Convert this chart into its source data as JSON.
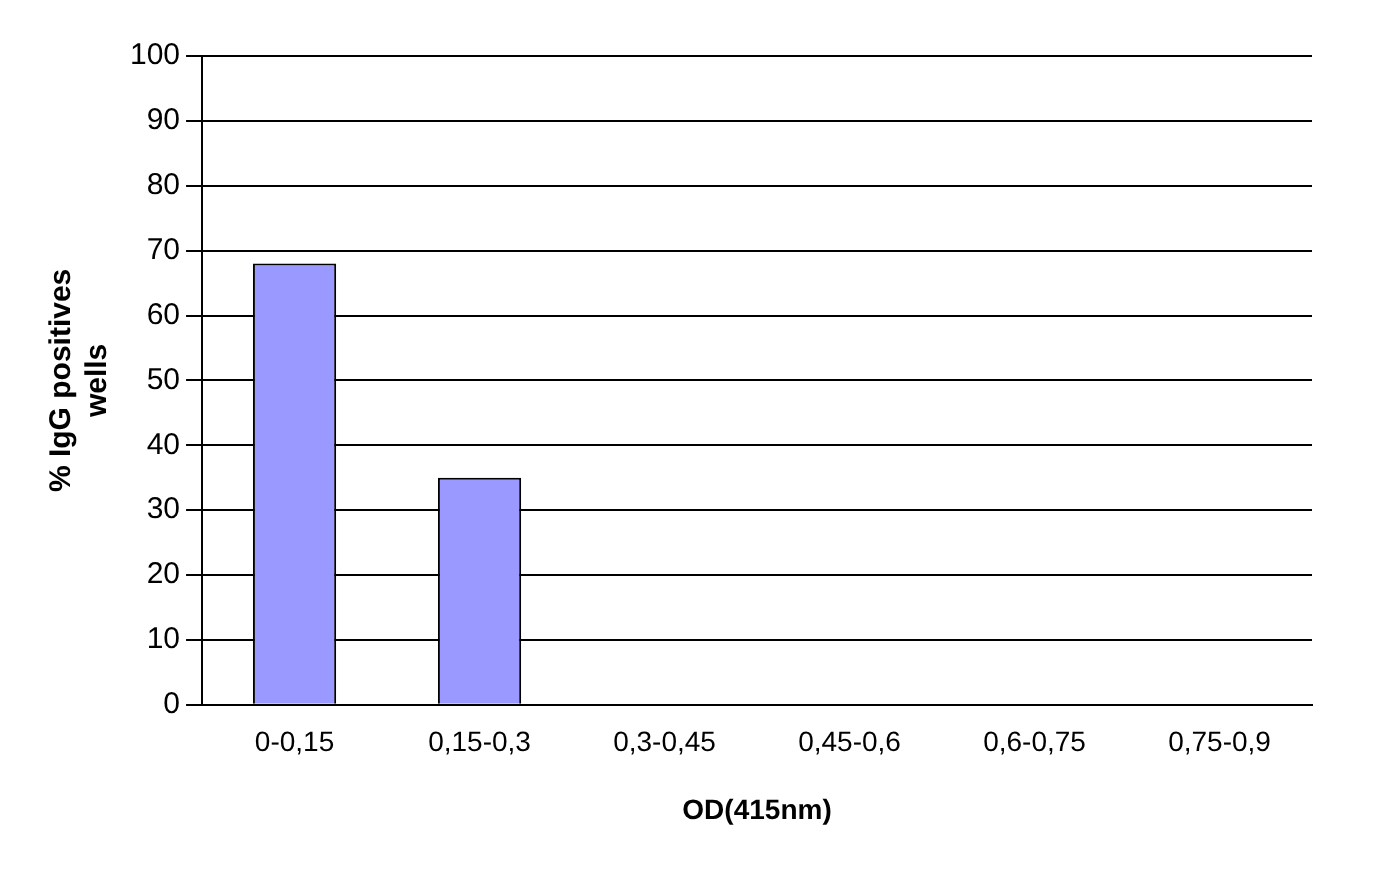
{
  "chart_data": {
    "type": "bar",
    "xlabel": "OD(415nm)",
    "ylabel": "% IgG positives wells",
    "categories": [
      "0-0,15",
      "0,15-0,3",
      "0,3-0,45",
      "0,45-0,6",
      "0,6-0,75",
      "0,75-0,9"
    ],
    "values": [
      68,
      35,
      0,
      0,
      0,
      0
    ],
    "color": "#9999ff",
    "ylim": [
      0,
      100
    ],
    "yticks": [
      0,
      10,
      20,
      30,
      40,
      50,
      60,
      70,
      80,
      90,
      100
    ],
    "grid": "y"
  }
}
